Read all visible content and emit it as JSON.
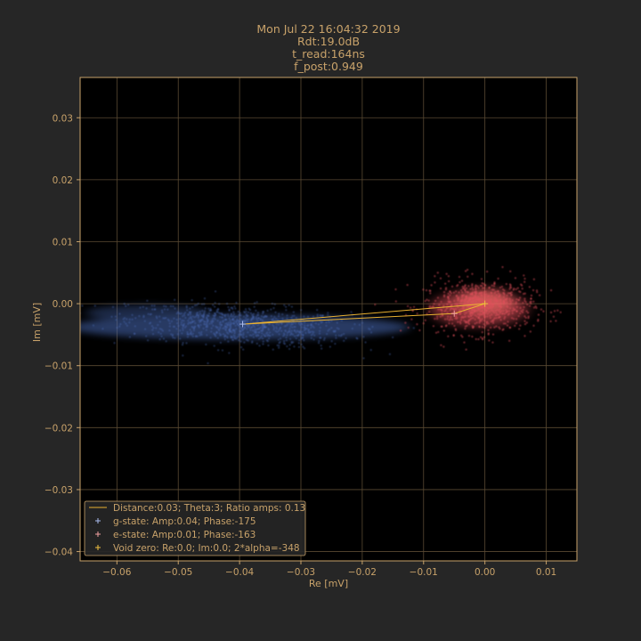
{
  "chart_data": {
    "type": "scatter",
    "title_lines": [
      "Mon Jul 22 16:04:32 2019",
      "Rdt:19.0dB",
      "t_read:164ns",
      "f_post:0.949"
    ],
    "xlabel": "Re [mV]",
    "ylabel": "Im [mV]",
    "xlim": [
      -0.066,
      0.015
    ],
    "ylim": [
      -0.0415,
      0.0365
    ],
    "xticks": [
      -0.06,
      -0.05,
      -0.04,
      -0.03,
      -0.02,
      -0.01,
      0.0,
      0.01
    ],
    "xtick_labels": [
      "−0.06",
      "−0.05",
      "−0.04",
      "−0.03",
      "−0.02",
      "−0.01",
      "0.00",
      "0.01"
    ],
    "yticks": [
      0.03,
      0.02,
      0.01,
      0.0,
      -0.01,
      -0.02,
      -0.03,
      -0.04
    ],
    "ytick_labels": [
      "0.03",
      "0.02",
      "0.01",
      "0.00",
      "−0.01",
      "−0.02",
      "−0.03",
      "−0.04"
    ],
    "grid": true,
    "legend_position": "lower-left",
    "colors": {
      "background": "#262626",
      "axes_bg": "#000000",
      "text": "#c8a26a",
      "grid": "#5a4a33",
      "g_cloud": "#4a6bb5",
      "e_cloud": "#e0505a",
      "line": "#e8b030",
      "g_marker": "#aabbee",
      "e_marker": "#f0a0a0",
      "void_marker": "#f0c040"
    },
    "clouds": [
      {
        "name": "g-cloud",
        "center": [
          -0.04,
          -0.0035
        ],
        "spread": [
          0.009,
          0.0016
        ],
        "extends_to": [
          -0.066,
          0.0
        ]
      },
      {
        "name": "e-cloud",
        "center": [
          -0.001,
          -0.0005
        ],
        "spread": [
          0.0045,
          0.0022
        ]
      }
    ],
    "points": {
      "g_state": [
        -0.0395,
        -0.0033
      ],
      "e_state": [
        -0.005,
        -0.0016
      ],
      "void_zero": [
        0.0,
        0.0
      ]
    },
    "legend": [
      {
        "type": "line",
        "label": "Distance:0.03; Theta:3; Ratio amps: 0.13"
      },
      {
        "type": "g",
        "label": "g-state: Amp:0.04; Phase:-175"
      },
      {
        "type": "e",
        "label": "e-state: Amp:0.01; Phase:-163"
      },
      {
        "type": "void",
        "label": "Void zero: Re:0.0; Im:0.0; 2*alpha=-348"
      }
    ]
  }
}
